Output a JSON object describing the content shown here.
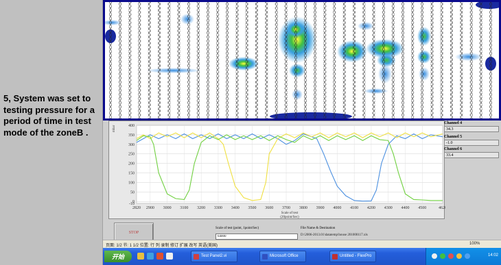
{
  "caption": "5, System was set to testing pressure for a period of time in test mode of the zoneB .",
  "labview": {
    "channels": [
      {
        "label": "Channel 4",
        "value": "34.3"
      },
      {
        "label": "Channel 5",
        "value": "-1.0"
      },
      {
        "label": "Channel 6",
        "value": "33.4"
      }
    ],
    "stop_label": "STOP",
    "scale_label": "Scale of test (point, 1point/Sec)",
    "scale_value": "64000",
    "file_label": "File Name & Destination",
    "file_path": "D:\\2006-2013.01\\datatemp\\house 201000117.xls"
  },
  "chart_data": {
    "type": "line",
    "ylabel": "mbar",
    "xlabel": "Scale of test",
    "xlabel_sub": "(20point/Sec)",
    "xlim": [
      2820,
      4620
    ],
    "ylim": [
      -10,
      400
    ],
    "xticks": [
      2820,
      2900,
      3000,
      3100,
      3200,
      3300,
      3400,
      3500,
      3600,
      3700,
      3800,
      3900,
      4000,
      4100,
      4200,
      4300,
      4400,
      4500,
      4620
    ],
    "yticks": [
      -10,
      0,
      50,
      100,
      150,
      200,
      250,
      300,
      350,
      400
    ],
    "ytick_labels": [
      "-10",
      "0",
      "50",
      "100",
      "150",
      "200",
      "250",
      "300",
      "350",
      "400"
    ],
    "series": [
      {
        "color": "#4a8fe0",
        "x": [
          2820,
          2860,
          2900,
          2950,
          3000,
          3050,
          3100,
          3150,
          3200,
          3250,
          3300,
          3350,
          3400,
          3450,
          3500,
          3550,
          3600,
          3650,
          3700,
          3750,
          3800,
          3850,
          3880,
          3920,
          3960,
          4000,
          4050,
          4100,
          4150,
          4200,
          4230,
          4260,
          4300,
          4350,
          4400,
          4450,
          4500,
          4550,
          4620
        ],
        "y": [
          310,
          330,
          350,
          330,
          350,
          330,
          355,
          330,
          350,
          330,
          355,
          330,
          350,
          330,
          355,
          330,
          350,
          330,
          300,
          320,
          355,
          340,
          330,
          250,
          160,
          80,
          30,
          5,
          2,
          3,
          60,
          200,
          300,
          345,
          330,
          355,
          330,
          350,
          340
        ]
      },
      {
        "color": "#f0e040",
        "x": [
          2820,
          2860,
          2900,
          2950,
          3000,
          3050,
          3100,
          3150,
          3200,
          3250,
          3300,
          3330,
          3360,
          3400,
          3450,
          3500,
          3550,
          3580,
          3600,
          3650,
          3700,
          3750,
          3800,
          3850,
          3900,
          3950,
          4000,
          4050,
          4100,
          4150,
          4200,
          4250,
          4300,
          4350,
          4400,
          4450,
          4500,
          4550,
          4620
        ],
        "y": [
          330,
          350,
          330,
          360,
          340,
          360,
          335,
          360,
          335,
          360,
          330,
          300,
          200,
          80,
          20,
          5,
          10,
          100,
          250,
          330,
          355,
          335,
          360,
          340,
          360,
          335,
          360,
          340,
          360,
          335,
          360,
          340,
          360,
          335,
          360,
          340,
          360,
          340,
          355
        ]
      },
      {
        "color": "#70d040",
        "x": [
          2820,
          2860,
          2900,
          2920,
          2950,
          3000,
          3050,
          3100,
          3130,
          3160,
          3200,
          3250,
          3300,
          3350,
          3400,
          3450,
          3500,
          3550,
          3600,
          3650,
          3700,
          3750,
          3800,
          3850,
          3900,
          3950,
          4000,
          4050,
          4100,
          4150,
          4200,
          4250,
          4300,
          4330,
          4360,
          4400,
          4450,
          4500,
          4550,
          4620
        ],
        "y": [
          320,
          345,
          340,
          300,
          150,
          40,
          15,
          10,
          60,
          200,
          310,
          345,
          325,
          350,
          325,
          345,
          325,
          345,
          320,
          345,
          325,
          310,
          345,
          325,
          345,
          320,
          345,
          325,
          345,
          320,
          345,
          325,
          320,
          250,
          150,
          40,
          10,
          8,
          5,
          5
        ]
      }
    ]
  },
  "status_bar": {
    "left": "页面: 1/2   节: 1   1/2   位置: 行 列   录制   修订   扩展   改写   英语(美国)",
    "right": "",
    "zoom": "100%"
  },
  "taskbar": {
    "start_label": "开始",
    "tasks": [
      {
        "label": "Test Panel2.vi",
        "color": "#d04040"
      },
      {
        "label": "Microsoft Office",
        "color": "#3050c0"
      },
      {
        "label": "Untitled - FlexPro",
        "color": "#c03030"
      }
    ],
    "clock": "14:02"
  }
}
